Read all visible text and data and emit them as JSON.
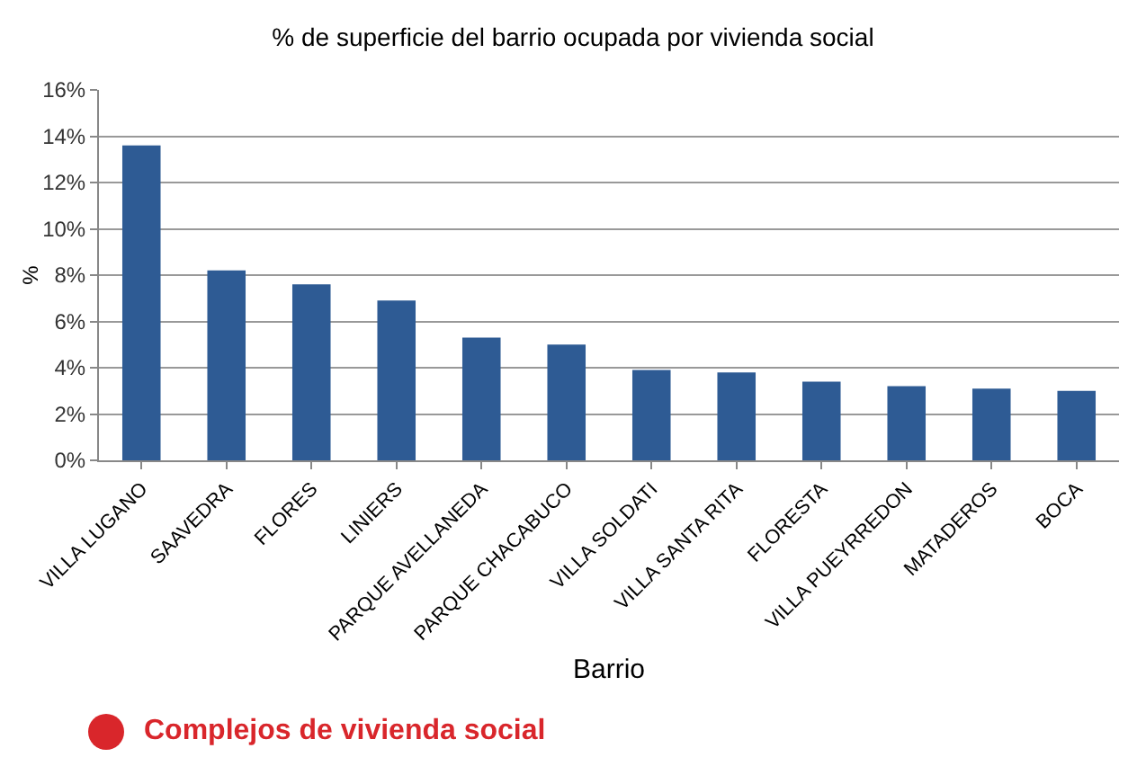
{
  "chart_data": {
    "type": "bar",
    "title": "% de superficie del barrio ocupada por vivienda social",
    "xlabel": "Barrio",
    "ylabel": "%",
    "categories": [
      "VILLA LUGANO",
      "SAAVEDRA",
      "FLORES",
      "LINIERS",
      "PARQUE AVELLANEDA",
      "PARQUE CHACABUCO",
      "VILLA SOLDATI",
      "VILLA SANTA RITA",
      "FLORESTA",
      "VILLA PUEYRREDON",
      "MATADEROS",
      "BOCA"
    ],
    "values": [
      13.6,
      8.2,
      7.6,
      6.9,
      5.3,
      5.0,
      3.9,
      3.8,
      3.4,
      3.2,
      3.1,
      3.0
    ],
    "color": "#2e5b94",
    "ylim": [
      0,
      16
    ],
    "yticks": [
      {
        "value": 0,
        "label": "0%"
      },
      {
        "value": 2,
        "label": "2%"
      },
      {
        "value": 4,
        "label": "4%"
      },
      {
        "value": 6,
        "label": "6%"
      },
      {
        "value": 8,
        "label": "8%"
      },
      {
        "value": 10,
        "label": "10%"
      },
      {
        "value": 12,
        "label": "12%"
      },
      {
        "value": 14,
        "label": "14%"
      },
      {
        "value": 16,
        "label": "16%"
      }
    ],
    "grid": "y",
    "annotations": [
      "Complejos de vivienda social"
    ]
  }
}
